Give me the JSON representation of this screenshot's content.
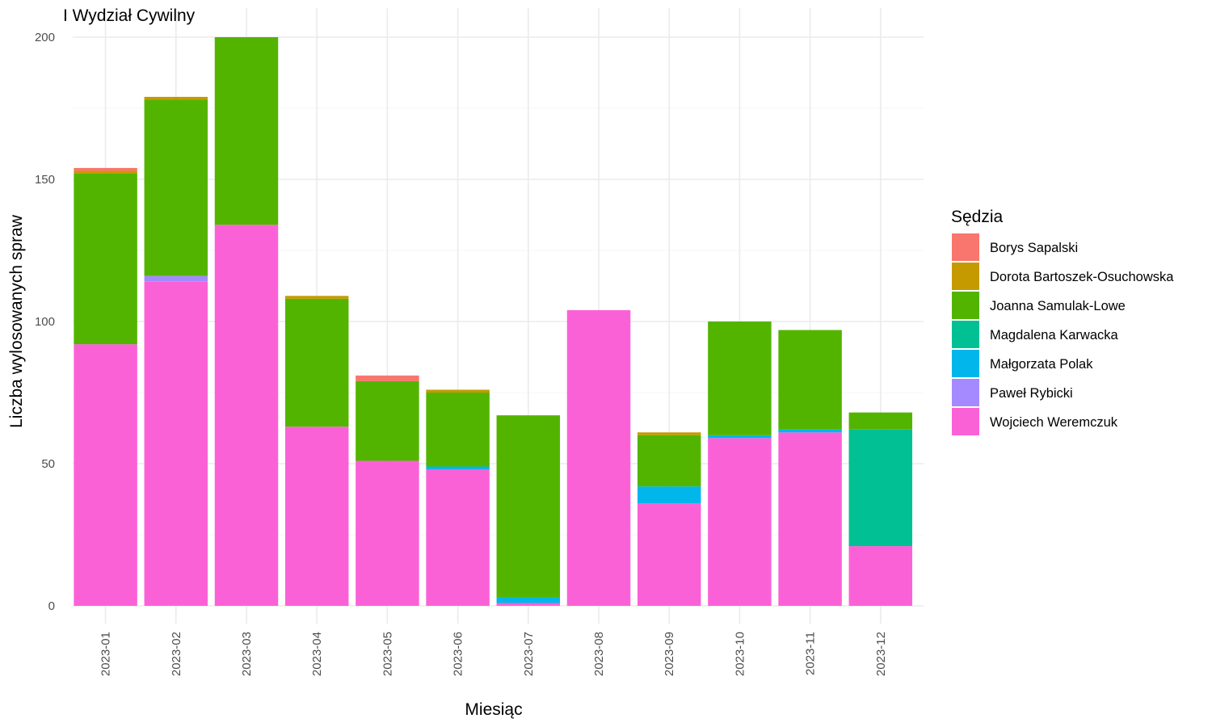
{
  "chart_data": {
    "type": "bar",
    "stacked": true,
    "title": "I Wydział Cywilny",
    "xlabel": "Miesiąc",
    "ylabel": "Liczba wylosowanych spraw",
    "ylim": [
      0,
      200
    ],
    "yticks": [
      0,
      50,
      100,
      150,
      200
    ],
    "grid": true,
    "legend": {
      "title": "Sędzia",
      "position": "right"
    },
    "categories": [
      "2023-01",
      "2023-02",
      "2023-03",
      "2023-04",
      "2023-05",
      "2023-06",
      "2023-07",
      "2023-08",
      "2023-09",
      "2023-10",
      "2023-11",
      "2023-12"
    ],
    "series": [
      {
        "name": "Borys Sapalski",
        "color": "#F8766D",
        "values": [
          1,
          0,
          0,
          0,
          2,
          0,
          0,
          0,
          0,
          0,
          0,
          0
        ]
      },
      {
        "name": "Dorota Bartoszek-Osuchowska",
        "color": "#C49A00",
        "values": [
          1,
          1,
          0,
          1,
          0,
          1,
          0,
          0,
          1,
          0,
          0,
          0
        ]
      },
      {
        "name": "Joanna Samulak-Lowe",
        "color": "#53B400",
        "values": [
          60,
          62,
          66,
          45,
          28,
          26,
          64,
          0,
          18,
          40,
          35,
          6
        ]
      },
      {
        "name": "Magdalena Karwacka",
        "color": "#00C094",
        "values": [
          0,
          0,
          0,
          0,
          0,
          0,
          0,
          0,
          0,
          0,
          0,
          41
        ]
      },
      {
        "name": "Małgorzata Polak",
        "color": "#00B6EB",
        "values": [
          0,
          0,
          0,
          0,
          0,
          1,
          2,
          0,
          6,
          1,
          1,
          0
        ]
      },
      {
        "name": "Paweł Rybicki",
        "color": "#A58AFF",
        "values": [
          0,
          2,
          0,
          0,
          0,
          0,
          0,
          0,
          0,
          0,
          0,
          0
        ]
      },
      {
        "name": "Wojciech Weremczuk",
        "color": "#FB61D7",
        "values": [
          92,
          114,
          134,
          63,
          51,
          48,
          1,
          104,
          36,
          59,
          61,
          21
        ]
      }
    ]
  }
}
